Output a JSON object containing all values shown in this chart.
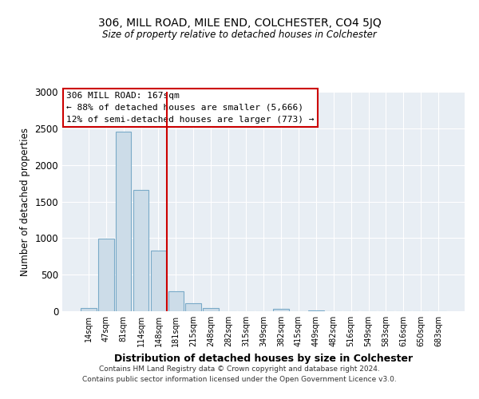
{
  "title1": "306, MILL ROAD, MILE END, COLCHESTER, CO4 5JQ",
  "title2": "Size of property relative to detached houses in Colchester",
  "xlabel": "Distribution of detached houses by size in Colchester",
  "ylabel": "Number of detached properties",
  "bar_labels": [
    "14sqm",
    "47sqm",
    "81sqm",
    "114sqm",
    "148sqm",
    "181sqm",
    "215sqm",
    "248sqm",
    "282sqm",
    "315sqm",
    "349sqm",
    "382sqm",
    "415sqm",
    "449sqm",
    "482sqm",
    "516sqm",
    "549sqm",
    "583sqm",
    "616sqm",
    "650sqm",
    "683sqm"
  ],
  "bar_values": [
    40,
    990,
    2460,
    1660,
    830,
    270,
    110,
    45,
    5,
    0,
    0,
    30,
    0,
    15,
    0,
    0,
    0,
    0,
    0,
    0,
    0
  ],
  "bar_color": "#ccdce8",
  "bar_edgecolor": "#7aaac8",
  "vline_color": "#cc0000",
  "annotation_title": "306 MILL ROAD: 167sqm",
  "annotation_line1": "← 88% of detached houses are smaller (5,666)",
  "annotation_line2": "12% of semi-detached houses are larger (773) →",
  "annotation_box_edgecolor": "#cc0000",
  "ylim": [
    0,
    3000
  ],
  "yticks": [
    0,
    500,
    1000,
    1500,
    2000,
    2500,
    3000
  ],
  "footer1": "Contains HM Land Registry data © Crown copyright and database right 2024.",
  "footer2": "Contains public sector information licensed under the Open Government Licence v3.0.",
  "bg_color": "#ffffff",
  "plot_bg_color": "#e8eef4",
  "grid_color": "#ffffff"
}
